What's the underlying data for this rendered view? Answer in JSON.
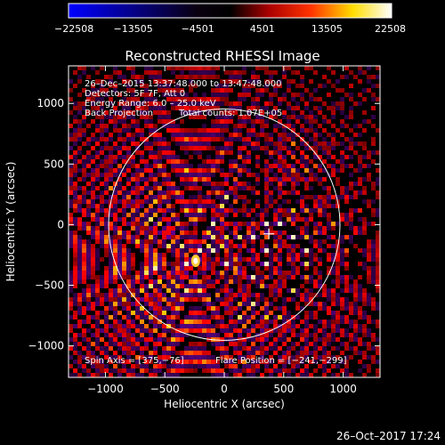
{
  "chart_data": {
    "type": "heatmap",
    "title": "Reconstructed RHESSI Image",
    "xlabel": "Heliocentric X (arcsec)",
    "ylabel": "Heliocentric Y (arcsec)",
    "xlim": [
      -1310,
      1310
    ],
    "ylim": [
      -1260,
      1310
    ],
    "xticks": [
      -1000,
      -500,
      0,
      500,
      1000
    ],
    "yticks": [
      -1000,
      -500,
      0,
      500,
      1000
    ],
    "xtick_labels": [
      "−1000",
      "−500",
      "0",
      "500",
      "1000"
    ],
    "ytick_labels": [
      "−1000",
      "−500",
      "0",
      "500",
      "1000"
    ],
    "colorbar": {
      "min": -22508,
      "max": 22508,
      "ticks": [
        "−22508",
        "−13505",
        "−4501",
        "4501",
        "13505",
        "22508"
      ],
      "colors": [
        "#0000ff",
        "#000000",
        "#ff0000",
        "#ffff00",
        "#ffffff"
      ]
    },
    "annotations": {
      "time_range": "26–Dec–2015 13:37:48.000 to 13:47:48.000",
      "detectors": "Detectors: 5F 7F, Att 0",
      "energy": "Energy Range: 6.0 – 25.0 keV",
      "method": "Back Projection",
      "counts": "Total counts: 1.07E+05",
      "spin_axis": "Spin Axis = [375,−76]",
      "flare_position": "Flare Position = [−241,−299]"
    },
    "solar_limb_radius": 973,
    "spin_axis_marker": [
      375,
      -76
    ],
    "source_peak": [
      -241,
      -299
    ]
  },
  "footer": {
    "timestamp": "26–Oct–2017 17:24"
  }
}
